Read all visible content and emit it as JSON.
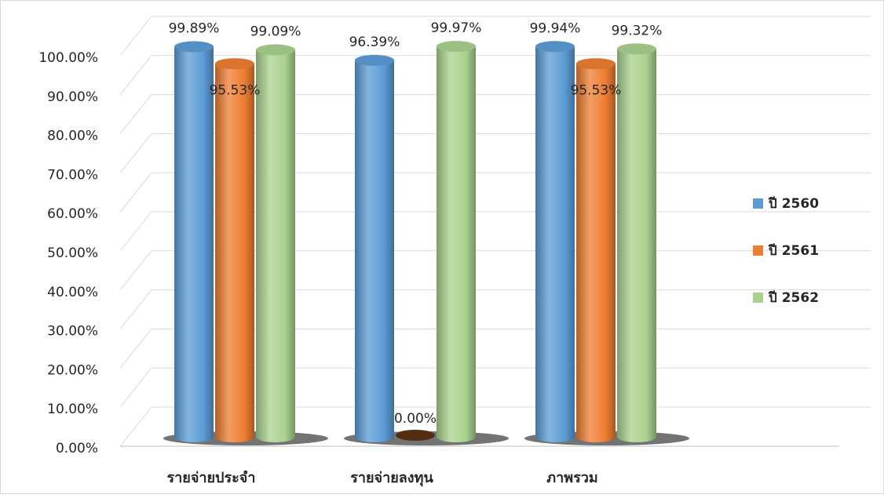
{
  "chart_data": {
    "type": "bar",
    "style": "3d-cylinder",
    "categories": [
      "รายจ่ายประจำ",
      "รายจ่ายลงทุน",
      "ภาพรวม"
    ],
    "series": [
      {
        "name": "ปี 2560",
        "color": "#5b9bd5",
        "values": [
          99.89,
          96.39,
          99.94
        ],
        "labels": [
          "99.89%",
          "96.39%",
          "99.94%"
        ]
      },
      {
        "name": "ปี 2561",
        "color": "#ed7d31",
        "values": [
          95.53,
          0.0,
          95.53
        ],
        "labels": [
          "95.53%",
          "0.00%",
          "95.53%"
        ]
      },
      {
        "name": "ปี 2562",
        "color": "#a9d18e",
        "values": [
          99.09,
          99.97,
          99.32
        ],
        "labels": [
          "99.09%",
          "99.97%",
          "99.32%"
        ]
      }
    ],
    "ylim": [
      0,
      100
    ],
    "yticks": [
      "0.00%",
      "10.00%",
      "20.00%",
      "30.00%",
      "40.00%",
      "50.00%",
      "60.00%",
      "70.00%",
      "80.00%",
      "90.00%",
      "100.00%"
    ],
    "grid": true,
    "legend_position": "right"
  }
}
